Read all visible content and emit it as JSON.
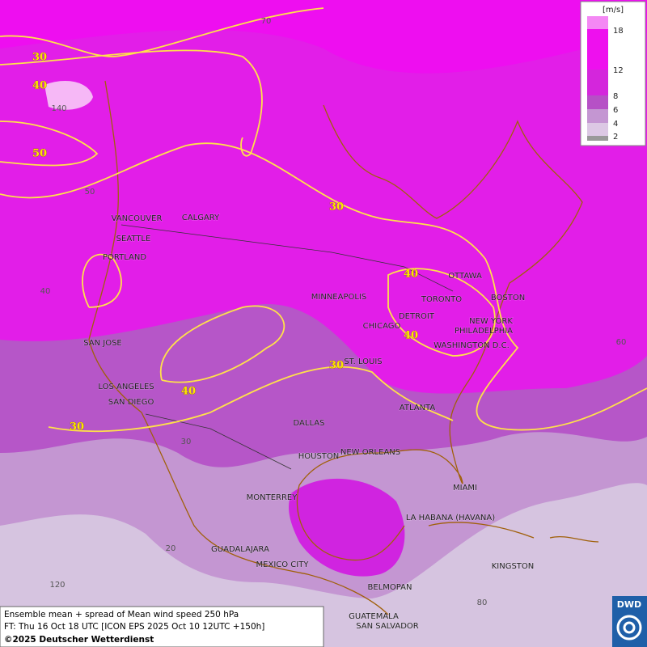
{
  "map": {
    "cities": [
      "VANCOUVER",
      "CALGARY",
      "SEATTLE",
      "PORTLAND",
      "MINNEAPOLIS",
      "OTTAWA",
      "TORONTO",
      "BOSTON",
      "DETROIT",
      "NEW YORK",
      "CHICAGO",
      "PHILADELPHIA",
      "WASHINGTON D.C.",
      "SAN JOSE",
      "ST. LOUIS",
      "LOS ANGELES",
      "SAN DIEGO",
      "ATLANTA",
      "DALLAS",
      "HOUSTON",
      "NEW ORLEANS",
      "MIAMI",
      "MONTERREY",
      "LA HABANA (HAVANA)",
      "GUADALAJARA",
      "MEXICO CITY",
      "KINGSTON",
      "BELMOPAN",
      "GUATEMALA",
      "SAN SALVADOR"
    ],
    "contour_labels": [
      "30",
      "40",
      "50",
      "30",
      "40",
      "40",
      "30",
      "40",
      "30"
    ],
    "grid_labels": [
      "70",
      "140",
      "50",
      "40",
      "60",
      "30",
      "20",
      "120",
      "80"
    ]
  },
  "legend": {
    "unit": "[m/s]",
    "levels": [
      "18",
      "12",
      "8",
      "6",
      "4",
      "2"
    ]
  },
  "footer": {
    "line1": "Ensemble mean + spread of Mean wind speed 250 hPa",
    "line2": "FT: Thu 16 Oct 18 UTC [ICON EPS 2025 Oct 10 12UTC +150h]",
    "line3": "©2025 Deutscher Wetterdienst",
    "logo": "DWD"
  }
}
